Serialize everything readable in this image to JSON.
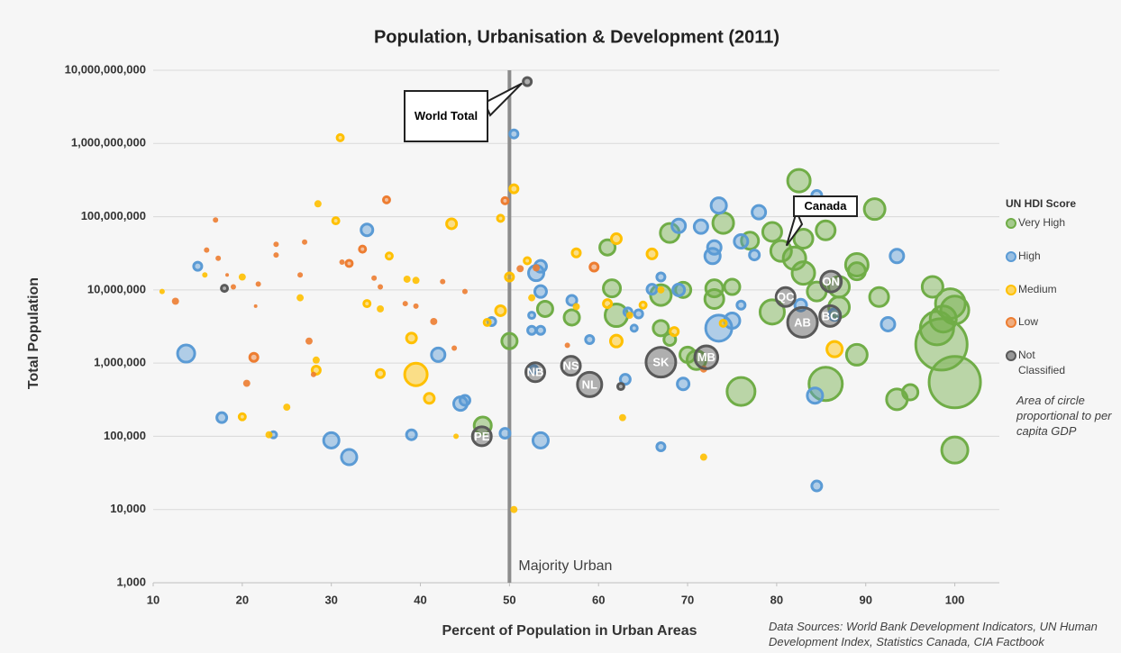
{
  "chart_data": {
    "type": "bubble",
    "title": "Population, Urbanisation & Development (2011)",
    "x_label": "Percent of Population in Urban Areas",
    "y_label": "Total Population",
    "xlim": [
      10,
      105
    ],
    "xticks": [
      10,
      20,
      30,
      40,
      50,
      60,
      70,
      80,
      90,
      100
    ],
    "ylim": [
      1000,
      10000000000
    ],
    "log_y": true,
    "grid": true,
    "yticks": [
      {
        "value": 1000,
        "label": "1,000"
      },
      {
        "value": 10000,
        "label": "10,000"
      },
      {
        "value": 100000,
        "label": "100,000"
      },
      {
        "value": 1000000,
        "label": "1,000,000"
      },
      {
        "value": 10000000,
        "label": "10,000,000"
      },
      {
        "value": 100000000,
        "label": "100,000,000"
      },
      {
        "value": 1000000000,
        "label": "1,000,000,000"
      },
      {
        "value": 10000000000,
        "label": "10,000,000,000"
      }
    ],
    "legend_title": "UN HDI Score",
    "legend_position": "right",
    "size_note": "Area of circle proportional to per capita GDP",
    "source": "Data Sources: World Bank Development Indicators, UN Human Development Index, Statistics Canada, CIA Factbook",
    "reference_line": {
      "x": 50,
      "label": "Majority Urban"
    },
    "annotations": [
      {
        "text": "World Total",
        "series": 4,
        "point": 0
      },
      {
        "text": "Canada",
        "series": 0,
        "point": 9
      }
    ],
    "series": [
      {
        "name": "Very High",
        "color": "#70ad47",
        "x": [
          82.5,
          91,
          74,
          85.5,
          79.5,
          68,
          77,
          83,
          61,
          80.5,
          82,
          89,
          89,
          83,
          97.5,
          73,
          61.5,
          69.5,
          75,
          91.5,
          73,
          84.5,
          87,
          99.5,
          100,
          98.7,
          98,
          98.5,
          100,
          87,
          79.5,
          62,
          67,
          57,
          54,
          67,
          68,
          70,
          71,
          89,
          76,
          85.5,
          93.5,
          95,
          100,
          50,
          47
        ],
        "values": [
          310000000,
          127000000,
          82000000,
          65000000,
          62000000,
          60000000,
          47000000,
          50000000,
          38000000,
          34000000,
          27000000,
          22000000,
          18000000,
          17000000,
          11000000,
          10500000,
          10500000,
          10000000,
          11000000,
          8000000,
          7500000,
          9500000,
          11000000,
          6500000,
          5300000,
          4000000,
          3000000,
          1800000,
          550000,
          5800000,
          5000000,
          4500000,
          8500000,
          4200000,
          5500000,
          3000000,
          2100000,
          1300000,
          1100000,
          1300000,
          410000,
          520000,
          320000,
          400000,
          65000,
          2000000,
          140000
        ],
        "sizes": [
          34800,
          30000,
          30000,
          25600,
          25600,
          25600,
          21500,
          25600,
          17800,
          30000,
          34800,
          34800,
          21500,
          34800,
          30000,
          21500,
          21500,
          17800,
          17800,
          25600,
          25600,
          25600,
          30000,
          57600,
          51400,
          45500,
          71100,
          160000,
          160000,
          30000,
          40000,
          34800,
          30000,
          17800,
          17800,
          17800,
          11400,
          17800,
          25600,
          30000,
          51400,
          71100,
          30000,
          17800,
          45500,
          17800,
          21500
        ]
      },
      {
        "name": "High",
        "color": "#5b9bd5",
        "x": [
          50.5,
          84.5,
          73.5,
          78,
          69,
          71.5,
          34,
          76,
          73,
          72.8,
          93.5,
          77.5,
          53.5,
          53,
          15,
          53.5,
          57,
          66,
          67,
          69,
          76,
          63.3,
          64.5,
          64,
          52.5,
          53.5,
          52.5,
          59,
          48,
          73.5,
          75,
          82.7,
          86.5,
          92.5,
          13.7,
          42,
          44.5,
          45,
          39,
          30,
          32,
          23.5,
          17.7,
          49.5,
          53.5,
          63,
          69.5,
          84.3,
          67,
          84.5,
          52.7
        ],
        "values": [
          1350000000,
          195000000,
          142000000,
          115000000,
          75000000,
          73000000,
          66000000,
          46000000,
          38000000,
          29000000,
          29000000,
          30000000,
          21000000,
          17000000,
          21000000,
          9500000,
          7200000,
          10200000,
          15000000,
          10000000,
          6200000,
          5000000,
          4700000,
          3000000,
          2800000,
          2800000,
          4500000,
          2100000,
          3700000,
          3000000,
          3800000,
          6200000,
          4600000,
          3400000,
          1350000,
          1300000,
          280000,
          310000,
          105000,
          88000,
          52000,
          105000,
          180000,
          110000,
          88000,
          600000,
          520000,
          360000,
          72000,
          21000,
          820000
        ],
        "sizes": [
          6400,
          8700,
          17800,
          14400,
          14400,
          14400,
          11400,
          14400,
          14400,
          17800,
          14400,
          8700,
          11400,
          17800,
          6400,
          11400,
          8700,
          8700,
          6400,
          11400,
          6400,
          6400,
          6400,
          4400,
          6400,
          6400,
          4400,
          6400,
          6400,
          45500,
          17800,
          11400,
          11400,
          14400,
          21500,
          14400,
          14400,
          8700,
          8700,
          17800,
          17800,
          4400,
          8700,
          8700,
          17800,
          8700,
          11400,
          17800,
          6400,
          8700,
          6400
        ]
      },
      {
        "name": "Medium",
        "color": "#ffc000",
        "x": [
          31,
          50.5,
          43.5,
          49,
          62,
          57.5,
          66,
          28.5,
          30.5,
          36.5,
          20,
          26.5,
          34,
          35.5,
          38.5,
          39.5,
          50,
          52,
          52.5,
          57.5,
          49,
          47.5,
          61,
          65,
          63.5,
          62,
          67,
          68.5,
          74,
          86.5,
          39,
          39.5,
          35.5,
          41,
          28.3,
          28.3,
          20,
          25,
          23,
          44,
          62.7,
          71.8,
          50.5,
          15.8,
          11
        ],
        "values": [
          1200000000,
          240000000,
          80000000,
          95000000,
          50000000,
          32000000,
          31000000,
          150000000,
          88000000,
          29000000,
          15000000,
          7800000,
          6500000,
          5500000,
          14000000,
          13500000,
          15000000,
          25000000,
          7800000,
          5900000,
          5200000,
          3600000,
          6500000,
          6200000,
          4500000,
          2000000,
          10000000,
          2700000,
          3500000,
          1550000,
          2200000,
          700000,
          720000,
          330000,
          800000,
          1100000,
          185000,
          250000,
          105000,
          100000,
          180000,
          52000,
          10000,
          16000000,
          9500000
        ],
        "sizes": [
          4400,
          6400,
          8700,
          4400,
          8700,
          6400,
          8700,
          2800,
          4400,
          4400,
          2800,
          2800,
          4400,
          2800,
          2800,
          2800,
          6400,
          4400,
          2800,
          2800,
          8700,
          4400,
          6400,
          4400,
          2800,
          11400,
          2800,
          6400,
          4400,
          17800,
          8700,
          34800,
          6400,
          8700,
          6400,
          2800,
          4400,
          2800,
          2800,
          1600,
          2800,
          2800,
          2800,
          1600,
          1600
        ]
      },
      {
        "name": "Low",
        "color": "#ed7d31",
        "x": [
          49.5,
          36.2,
          33.5,
          32,
          27,
          23.8,
          21.8,
          23.8,
          17.3,
          16,
          17,
          12.5,
          19,
          31.2,
          35.5,
          34.8,
          39.5,
          38.3,
          42.5,
          45,
          26.5,
          21.3,
          20.5,
          27.5,
          28,
          41.5,
          43.8,
          51.2,
          53,
          59.5,
          56.5,
          71.8,
          18.3,
          21.5
        ],
        "values": [
          165000000,
          170000000,
          36000000,
          23000000,
          45000000,
          42000000,
          12000000,
          30000000,
          27000000,
          35000000,
          90000000,
          7000000,
          11000000,
          24000000,
          11000000,
          14500000,
          6000000,
          6500000,
          13000000,
          9500000,
          16000000,
          1200000,
          530000,
          2000000,
          700000,
          3700000,
          1600000,
          19500000,
          20000000,
          20500000,
          1750000,
          830000,
          16000000,
          6000000
        ],
        "sizes": [
          4400,
          4400,
          4400,
          4400,
          1600,
          1600,
          1600,
          1600,
          1600,
          1600,
          1600,
          2800,
          1600,
          1600,
          1600,
          1600,
          1600,
          1600,
          1600,
          1600,
          1600,
          6400,
          2800,
          2800,
          1600,
          2800,
          1600,
          2800,
          2800,
          6400,
          1600,
          2800,
          700,
          700
        ]
      },
      {
        "name": "Not Classified",
        "color": "#595959",
        "x": [
          52,
          18,
          62.5,
          46.9,
          52.9,
          56.9,
          59,
          67,
          72.1,
          81,
          82.9,
          86,
          86.1
        ],
        "values": [
          7000000000,
          10500000,
          480000,
          100000,
          750000,
          920000,
          510000,
          1030000,
          1200000,
          8000000,
          3600000,
          4400000,
          13000000
        ],
        "sizes": [
          6400,
          4400,
          4400,
          25600,
          25600,
          25600,
          40000,
          57600,
          36000,
          25600,
          57600,
          30000,
          30000
        ],
        "labels": [
          null,
          null,
          null,
          "PE",
          "NB",
          "NS",
          "NL",
          "SK",
          "MB",
          "QC",
          "AB",
          "BC",
          "ON"
        ]
      }
    ]
  }
}
